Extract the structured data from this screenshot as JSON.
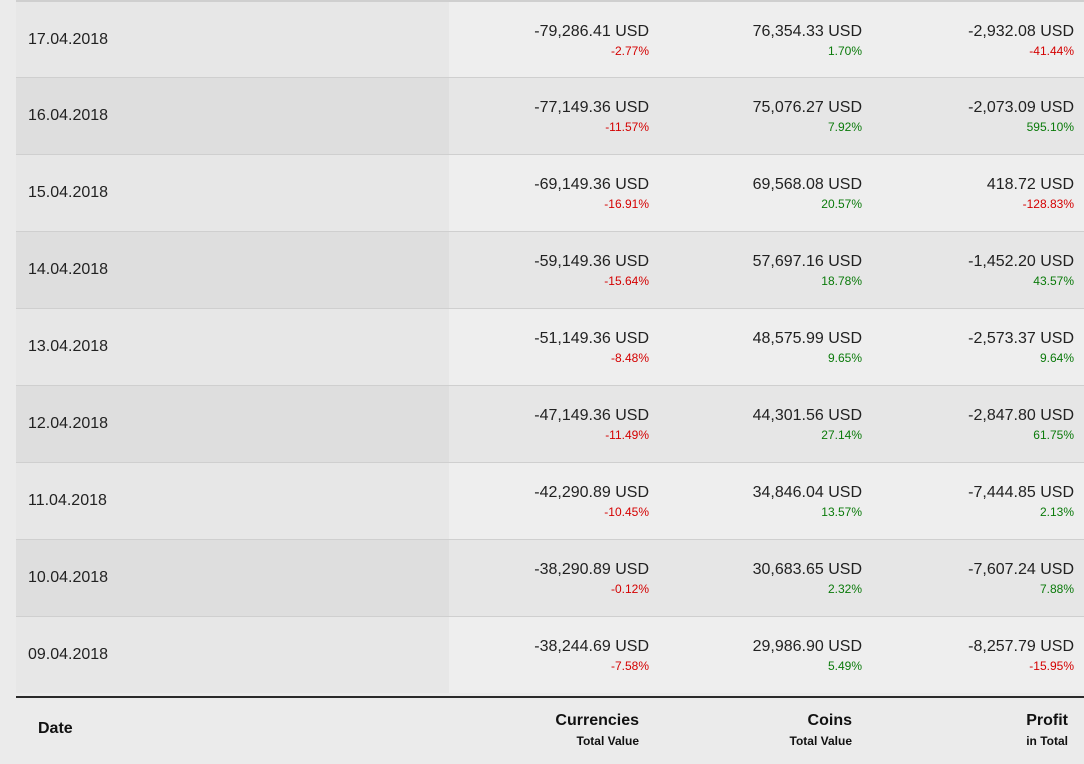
{
  "rows": [
    {
      "date": "17.04.2018",
      "currencies": {
        "value": "-79,286.41 USD",
        "pct": "-2.77%",
        "trend": "neg"
      },
      "coins": {
        "value": "76,354.33 USD",
        "pct": "1.70%",
        "trend": "pos"
      },
      "profit": {
        "value": "-2,932.08 USD",
        "pct": "-41.44%",
        "trend": "neg"
      }
    },
    {
      "date": "16.04.2018",
      "currencies": {
        "value": "-77,149.36 USD",
        "pct": "-11.57%",
        "trend": "neg"
      },
      "coins": {
        "value": "75,076.27 USD",
        "pct": "7.92%",
        "trend": "pos"
      },
      "profit": {
        "value": "-2,073.09 USD",
        "pct": "595.10%",
        "trend": "pos"
      }
    },
    {
      "date": "15.04.2018",
      "currencies": {
        "value": "-69,149.36 USD",
        "pct": "-16.91%",
        "trend": "neg"
      },
      "coins": {
        "value": "69,568.08 USD",
        "pct": "20.57%",
        "trend": "pos"
      },
      "profit": {
        "value": "418.72 USD",
        "pct": "-128.83%",
        "trend": "neg"
      }
    },
    {
      "date": "14.04.2018",
      "currencies": {
        "value": "-59,149.36 USD",
        "pct": "-15.64%",
        "trend": "neg"
      },
      "coins": {
        "value": "57,697.16 USD",
        "pct": "18.78%",
        "trend": "pos"
      },
      "profit": {
        "value": "-1,452.20 USD",
        "pct": "43.57%",
        "trend": "pos"
      }
    },
    {
      "date": "13.04.2018",
      "currencies": {
        "value": "-51,149.36 USD",
        "pct": "-8.48%",
        "trend": "neg"
      },
      "coins": {
        "value": "48,575.99 USD",
        "pct": "9.65%",
        "trend": "pos"
      },
      "profit": {
        "value": "-2,573.37 USD",
        "pct": "9.64%",
        "trend": "pos"
      }
    },
    {
      "date": "12.04.2018",
      "currencies": {
        "value": "-47,149.36 USD",
        "pct": "-11.49%",
        "trend": "neg"
      },
      "coins": {
        "value": "44,301.56 USD",
        "pct": "27.14%",
        "trend": "pos"
      },
      "profit": {
        "value": "-2,847.80 USD",
        "pct": "61.75%",
        "trend": "pos"
      }
    },
    {
      "date": "11.04.2018",
      "currencies": {
        "value": "-42,290.89 USD",
        "pct": "-10.45%",
        "trend": "neg"
      },
      "coins": {
        "value": "34,846.04 USD",
        "pct": "13.57%",
        "trend": "pos"
      },
      "profit": {
        "value": "-7,444.85 USD",
        "pct": "2.13%",
        "trend": "pos"
      }
    },
    {
      "date": "10.04.2018",
      "currencies": {
        "value": "-38,290.89 USD",
        "pct": "-0.12%",
        "trend": "neg"
      },
      "coins": {
        "value": "30,683.65 USD",
        "pct": "2.32%",
        "trend": "pos"
      },
      "profit": {
        "value": "-7,607.24 USD",
        "pct": "7.88%",
        "trend": "pos"
      }
    },
    {
      "date": "09.04.2018",
      "currencies": {
        "value": "-38,244.69 USD",
        "pct": "-7.58%",
        "trend": "neg"
      },
      "coins": {
        "value": "29,986.90 USD",
        "pct": "5.49%",
        "trend": "pos"
      },
      "profit": {
        "value": "-8,257.79 USD",
        "pct": "-15.95%",
        "trend": "neg"
      }
    }
  ],
  "footer": {
    "date": "Date",
    "currencies": {
      "title": "Currencies",
      "sub": "Total Value"
    },
    "coins": {
      "title": "Coins",
      "sub": "Total Value"
    },
    "profit": {
      "title": "Profit",
      "sub": "in Total"
    }
  },
  "colors": {
    "negative": "#d40000",
    "positive": "#0a7a0a"
  }
}
